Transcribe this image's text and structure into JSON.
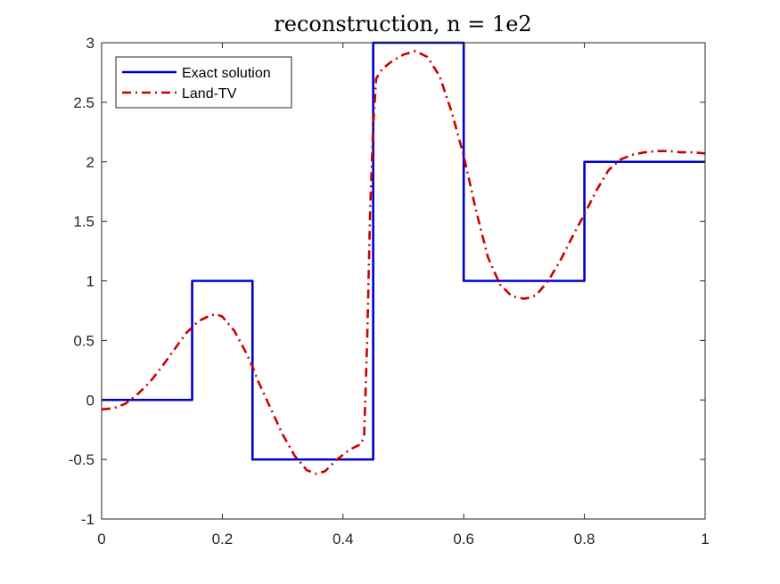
{
  "chart_data": {
    "type": "line",
    "title": "reconstruction, n = 1e2",
    "xlabel": "",
    "ylabel": "",
    "xlim": [
      0,
      1
    ],
    "ylim": [
      -1,
      3
    ],
    "grid": false,
    "legend_position": "top-left",
    "x_ticks": [
      0,
      0.2,
      0.4,
      0.6,
      0.8,
      1
    ],
    "x_tick_labels": [
      "0",
      "0.2",
      "0.4",
      "0.6",
      "0.8",
      "1"
    ],
    "y_ticks": [
      -1,
      -0.5,
      0,
      0.5,
      1,
      1.5,
      2,
      2.5,
      3
    ],
    "y_tick_labels": [
      "-1",
      "-0.5",
      "0",
      "0.5",
      "1",
      "1.5",
      "2",
      "2.5",
      "3"
    ],
    "series": [
      {
        "name": "Exact solution",
        "color": "#0000cc",
        "style": "solid",
        "x": [
          0,
          0.15,
          0.15,
          0.25,
          0.25,
          0.45,
          0.45,
          0.6,
          0.6,
          0.8,
          0.8,
          1.0
        ],
        "y": [
          0,
          0,
          1,
          1,
          -0.5,
          -0.5,
          3,
          3,
          1,
          1,
          2,
          2
        ]
      },
      {
        "name": "Land-TV",
        "color": "#cc0000",
        "style": "dash-dot",
        "x": [
          0,
          0.02,
          0.04,
          0.06,
          0.08,
          0.1,
          0.12,
          0.14,
          0.16,
          0.18,
          0.19,
          0.2,
          0.22,
          0.24,
          0.25,
          0.26,
          0.28,
          0.3,
          0.32,
          0.34,
          0.355,
          0.37,
          0.39,
          0.41,
          0.43,
          0.435,
          0.44,
          0.445,
          0.45,
          0.455,
          0.465,
          0.48,
          0.5,
          0.52,
          0.54,
          0.56,
          0.58,
          0.6,
          0.62,
          0.64,
          0.66,
          0.68,
          0.7,
          0.71,
          0.72,
          0.74,
          0.76,
          0.78,
          0.8,
          0.82,
          0.84,
          0.86,
          0.88,
          0.9,
          0.92,
          0.94,
          0.96,
          0.98,
          1.0
        ],
        "y": [
          -0.08,
          -0.07,
          -0.03,
          0.05,
          0.15,
          0.28,
          0.42,
          0.56,
          0.66,
          0.71,
          0.72,
          0.7,
          0.58,
          0.39,
          0.28,
          0.15,
          -0.07,
          -0.29,
          -0.47,
          -0.59,
          -0.62,
          -0.6,
          -0.5,
          -0.42,
          -0.37,
          -0.3,
          0.5,
          1.6,
          2.3,
          2.7,
          2.78,
          2.84,
          2.9,
          2.93,
          2.88,
          2.72,
          2.42,
          2.05,
          1.6,
          1.2,
          0.97,
          0.87,
          0.85,
          0.86,
          0.88,
          1.0,
          1.17,
          1.37,
          1.56,
          1.76,
          1.93,
          2.02,
          2.06,
          2.08,
          2.09,
          2.09,
          2.08,
          2.08,
          2.07
        ]
      }
    ]
  }
}
